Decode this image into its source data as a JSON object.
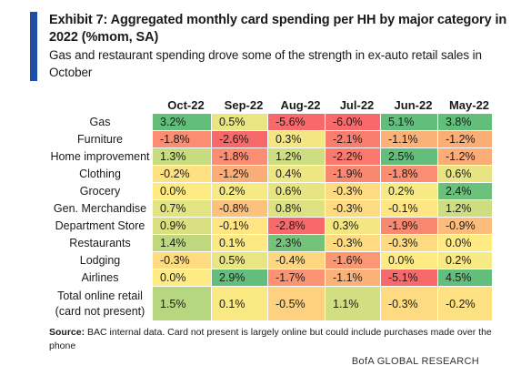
{
  "header": {
    "title": "Exhibit 7: Aggregated monthly card spending per HH by major category in 2022 (%mom, SA)",
    "subtitle": "Gas and restaurant spending drove some of the strength in ex-auto retail sales in October"
  },
  "colors": {
    "accent": "#1f4ea8",
    "heat_scale": [
      "#f8696b",
      "#fbaa77",
      "#ffeb84",
      "#cbdc81",
      "#63be7b"
    ]
  },
  "chart_data": {
    "type": "heatmap",
    "title": "Exhibit 7: Aggregated monthly card spending per HH by major category in 2022 (%mom, SA)",
    "subtitle": "Gas and restaurant spending drove some of the strength in ex-auto retail sales in October",
    "columns": [
      "Oct-22",
      "Sep-22",
      "Aug-22",
      "Jul-22",
      "Jun-22",
      "May-22"
    ],
    "rows": [
      {
        "label": "Gas",
        "values": [
          3.2,
          0.5,
          -5.6,
          -6.0,
          5.1,
          3.8
        ],
        "display": [
          "3.2%",
          "0.5%",
          "-5.6%",
          "-6.0%",
          "5.1%",
          "3.8%"
        ]
      },
      {
        "label": "Furniture",
        "values": [
          -1.8,
          -2.6,
          0.3,
          -2.1,
          -1.1,
          -1.2
        ],
        "display": [
          "-1.8%",
          "-2.6%",
          "0.3%",
          "-2.1%",
          "-1.1%",
          "-1.2%"
        ]
      },
      {
        "label": "Home improvement",
        "values": [
          1.3,
          -1.8,
          1.2,
          -2.2,
          2.5,
          -1.2
        ],
        "display": [
          "1.3%",
          "-1.8%",
          "1.2%",
          "-2.2%",
          "2.5%",
          "-1.2%"
        ]
      },
      {
        "label": "Clothing",
        "values": [
          -0.2,
          -1.2,
          0.4,
          -1.9,
          -1.8,
          0.6
        ],
        "display": [
          "-0.2%",
          "-1.2%",
          "0.4%",
          "-1.9%",
          "-1.8%",
          "0.6%"
        ]
      },
      {
        "label": "Grocery",
        "values": [
          0.0,
          0.2,
          0.6,
          -0.3,
          0.2,
          2.4
        ],
        "display": [
          "0.0%",
          "0.2%",
          "0.6%",
          "-0.3%",
          "0.2%",
          "2.4%"
        ]
      },
      {
        "label": "Gen. Merchandise",
        "values": [
          0.7,
          -0.8,
          0.8,
          -0.3,
          -0.1,
          1.2
        ],
        "display": [
          "0.7%",
          "-0.8%",
          "0.8%",
          "-0.3%",
          "-0.1%",
          "1.2%"
        ]
      },
      {
        "label": "Department Store",
        "values": [
          0.9,
          -0.1,
          -2.8,
          0.3,
          -1.9,
          -0.9
        ],
        "display": [
          "0.9%",
          "-0.1%",
          "-2.8%",
          "0.3%",
          "-1.9%",
          "-0.9%"
        ]
      },
      {
        "label": "Restaurants",
        "values": [
          1.4,
          0.1,
          2.3,
          -0.3,
          -0.3,
          0.0
        ],
        "display": [
          "1.4%",
          "0.1%",
          "2.3%",
          "-0.3%",
          "-0.3%",
          "0.0%"
        ]
      },
      {
        "label": "Lodging",
        "values": [
          -0.3,
          0.5,
          -0.4,
          -1.6,
          0.0,
          0.2
        ],
        "display": [
          "-0.3%",
          "0.5%",
          "-0.4%",
          "-1.6%",
          "0.0%",
          "0.2%"
        ]
      },
      {
        "label": "Airlines",
        "values": [
          0.0,
          2.9,
          -1.7,
          -1.1,
          -5.1,
          4.5
        ],
        "display": [
          "0.0%",
          "2.9%",
          "-1.7%",
          "-1.1%",
          "-5.1%",
          "4.5%"
        ]
      },
      {
        "label": "Total online retail\n(card not present)",
        "values": [
          1.5,
          0.1,
          -0.5,
          1.1,
          -0.3,
          -0.2
        ],
        "display": [
          "1.5%",
          "0.1%",
          "-0.5%",
          "1.1%",
          "-0.3%",
          "-0.2%"
        ]
      }
    ]
  },
  "footer": {
    "source_label": "Source:",
    "source_text": "BAC internal data. Card not present is largely online but could include purchases made over the phone",
    "brand": "BofA GLOBAL RESEARCH"
  }
}
